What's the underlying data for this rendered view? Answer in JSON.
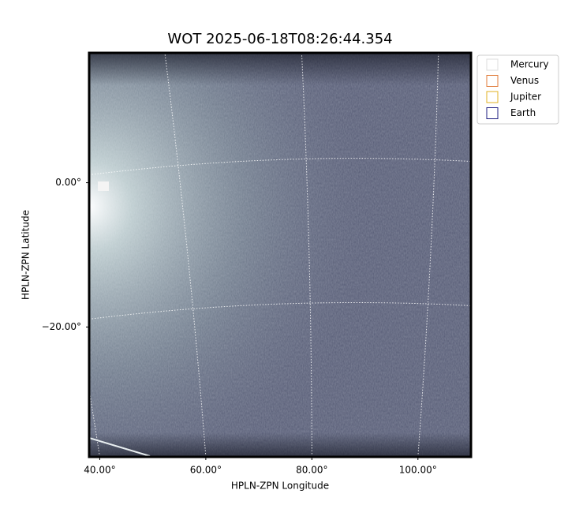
{
  "chart_data": {
    "type": "image",
    "title": "WOT 2025-06-18T08:26:44.354",
    "x_label": "HPLN-ZPN Longitude",
    "y_label": "HPLN-ZPN Latitude",
    "xlim": [
      38,
      110
    ],
    "ylim": [
      -38,
      18
    ],
    "xticks": [
      {
        "value": 40,
        "label": "40.00°"
      },
      {
        "value": 60,
        "label": "60.00°"
      },
      {
        "value": 80,
        "label": "80.00°"
      },
      {
        "value": 100,
        "label": "100.00°"
      }
    ],
    "yticks": [
      {
        "value": -20,
        "label": "−20.00°"
      },
      {
        "value": 0,
        "label": "0.00°"
      }
    ],
    "grid": true,
    "legend": "upper right outside",
    "series": [
      {
        "name": "Mercury",
        "color": "#dddddd"
      },
      {
        "name": "Venus",
        "color": "#e07b39"
      },
      {
        "name": "Jupiter",
        "color": "#e0b020"
      },
      {
        "name": "Earth",
        "color": "#1c1c80"
      }
    ]
  }
}
